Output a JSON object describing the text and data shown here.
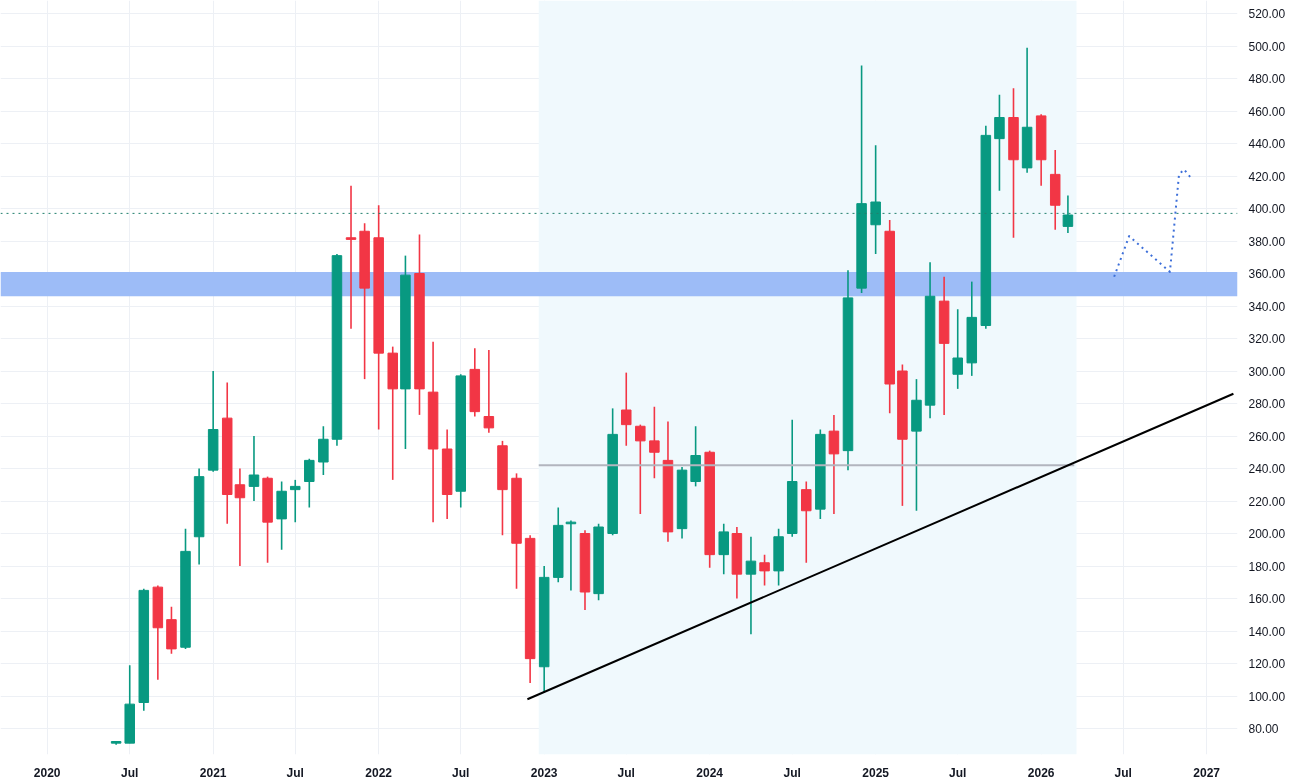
{
  "chart_data": {
    "type": "candlestick",
    "x": [
      "2020-06",
      "2020-07",
      "2020-08",
      "2020-09",
      "2020-10",
      "2020-11",
      "2020-12",
      "2021-01",
      "2021-02",
      "2021-03",
      "2021-04",
      "2021-05",
      "2021-06",
      "2021-07",
      "2021-08",
      "2021-09",
      "2021-10",
      "2021-11",
      "2021-12",
      "2022-01",
      "2022-02",
      "2022-03",
      "2022-04",
      "2022-05",
      "2022-06",
      "2022-07",
      "2022-08",
      "2022-09",
      "2022-10",
      "2022-11",
      "2022-12",
      "2023-01",
      "2023-02",
      "2023-03",
      "2023-04",
      "2023-05",
      "2023-06",
      "2023-07",
      "2023-08",
      "2023-09",
      "2023-10",
      "2023-11",
      "2023-12",
      "2024-01",
      "2024-02",
      "2024-03",
      "2024-04",
      "2024-05",
      "2024-06",
      "2024-07",
      "2024-08",
      "2024-09",
      "2024-10",
      "2024-11",
      "2024-12",
      "2025-01",
      "2025-02",
      "2025-03",
      "2025-04",
      "2025-05",
      "2025-06",
      "2025-07",
      "2025-08",
      "2025-09",
      "2025-10",
      "2025-11",
      "2025-12",
      "2026-01",
      "2026-02",
      "2026-03"
    ],
    "ohlc": [
      [
        71,
        72,
        70,
        72
      ],
      [
        71,
        119,
        71,
        95
      ],
      [
        96,
        166,
        91,
        165
      ],
      [
        167,
        168,
        110,
        142
      ],
      [
        147,
        155,
        126,
        129
      ],
      [
        130,
        203,
        129,
        189
      ],
      [
        198,
        240,
        181,
        235
      ],
      [
        239,
        300,
        238,
        264
      ],
      [
        271,
        293,
        206,
        224
      ],
      [
        230,
        240,
        180,
        222
      ],
      [
        229,
        260,
        220,
        236
      ],
      [
        234,
        235,
        182,
        207
      ],
      [
        209,
        232,
        190,
        226
      ],
      [
        227,
        233,
        207,
        229
      ],
      [
        232,
        246,
        216,
        245
      ],
      [
        244,
        266,
        236,
        258
      ],
      [
        258,
        372,
        254,
        371
      ],
      [
        382,
        414,
        326,
        381
      ],
      [
        386,
        391,
        295,
        351
      ],
      [
        382,
        402,
        264,
        311
      ],
      [
        311,
        315,
        233,
        289
      ],
      [
        289,
        371,
        252,
        359
      ],
      [
        360,
        384,
        273,
        289
      ],
      [
        287,
        318,
        207,
        252
      ],
      [
        252,
        264,
        209,
        224
      ],
      [
        226,
        298,
        216,
        297
      ],
      [
        301,
        314,
        272,
        275
      ],
      [
        272,
        313,
        262,
        265
      ],
      [
        254,
        257,
        199,
        227
      ],
      [
        234,
        237,
        166,
        194
      ],
      [
        197,
        199,
        108,
        123
      ],
      [
        118,
        180,
        102,
        173
      ],
      [
        173,
        216,
        170,
        205
      ],
      [
        206,
        208,
        165,
        207
      ],
      [
        200,
        202,
        153,
        164
      ],
      [
        163,
        206,
        159,
        204
      ],
      [
        200,
        277,
        199,
        261
      ],
      [
        276,
        299,
        254,
        267
      ],
      [
        266,
        267,
        212,
        257
      ],
      [
        257,
        278,
        234,
        250
      ],
      [
        245,
        269,
        195,
        201
      ],
      [
        203,
        241,
        197,
        239
      ],
      [
        232,
        266,
        229,
        248
      ],
      [
        250,
        251,
        179,
        187
      ],
      [
        187,
        206,
        175,
        201
      ],
      [
        200,
        204,
        160,
        175
      ],
      [
        175,
        198,
        138,
        183
      ],
      [
        182,
        187,
        168,
        177
      ],
      [
        177,
        203,
        168,
        198
      ],
      [
        200,
        270,
        198,
        232
      ],
      [
        227,
        232,
        182,
        214
      ],
      [
        215,
        264,
        209,
        261
      ],
      [
        263,
        273,
        212,
        249
      ],
      [
        251,
        362,
        239,
        345
      ],
      [
        351,
        488,
        348,
        403
      ],
      [
        390,
        439,
        372,
        404
      ],
      [
        386,
        393,
        274,
        292
      ],
      [
        300,
        304,
        217,
        258
      ],
      [
        263,
        295,
        214,
        282
      ],
      [
        279,
        367,
        271,
        346
      ],
      [
        343,
        358,
        273,
        317
      ],
      [
        298,
        338,
        289,
        308
      ],
      [
        305,
        355,
        297,
        333
      ],
      [
        328,
        451,
        326,
        445
      ],
      [
        443,
        470,
        411,
        456
      ],
      [
        456,
        474,
        382,
        430
      ],
      [
        425,
        499,
        422,
        450
      ],
      [
        457,
        458,
        414,
        430
      ],
      [
        421,
        436,
        387,
        402
      ],
      [
        389,
        408,
        385,
        396
      ]
    ],
    "series": [
      {
        "type": "line",
        "color": "#b2b5be",
        "x": [
          "2022-12-20",
          "2026-03-15"
        ],
        "values": [
          242,
          242
        ]
      },
      {
        "type": "line",
        "color": "#000000",
        "x": [
          "2022-11-25",
          "2027-03-01"
        ],
        "values": [
          98,
          286
        ]
      },
      {
        "type": "line",
        "color": "#3d6fd9",
        "line_style": "dotted",
        "x": [
          "2026-06-11",
          "2026-07-14",
          "2026-10-12",
          "2026-11-01",
          "2026-11-12",
          "2026-11-30"
        ],
        "values": [
          358,
          383,
          361,
          421,
          424,
          418
        ]
      }
    ],
    "ref_lines": [
      {
        "axis": "y",
        "value": 397,
        "color": "#22806e",
        "line_style": "dotted"
      }
    ],
    "bands": [
      {
        "axis": "x",
        "from": "2022-12-20",
        "to": "2026-03-20",
        "color": "#f0f9fd"
      },
      {
        "axis": "y",
        "from": 346,
        "to": 361,
        "color": "#9dbcf7"
      }
    ],
    "xlim": [
      "2019-09-20",
      "2027-03-10"
    ],
    "ylim": [
      64,
      528
    ],
    "xticks": [
      {
        "value": "2020-01",
        "label": "2020"
      },
      {
        "value": "2020-07",
        "label": "Jul"
      },
      {
        "value": "2021-01",
        "label": "2021"
      },
      {
        "value": "2021-07",
        "label": "Jul"
      },
      {
        "value": "2022-01",
        "label": "2022"
      },
      {
        "value": "2022-07",
        "label": "Jul"
      },
      {
        "value": "2023-01",
        "label": "2023"
      },
      {
        "value": "2023-07",
        "label": "Jul"
      },
      {
        "value": "2024-01",
        "label": "2024"
      },
      {
        "value": "2024-07",
        "label": "Jul"
      },
      {
        "value": "2025-01",
        "label": "2025"
      },
      {
        "value": "2025-07",
        "label": "Jul"
      },
      {
        "value": "2026-01",
        "label": "2026"
      },
      {
        "value": "2026-07",
        "label": "Jul"
      },
      {
        "value": "2027-01",
        "label": "2027"
      }
    ],
    "yticks": [
      {
        "value": 80,
        "label": "80.00"
      },
      {
        "value": 100,
        "label": "100.00"
      },
      {
        "value": 120,
        "label": "120.00"
      },
      {
        "value": 140,
        "label": "140.00"
      },
      {
        "value": 160,
        "label": "160.00"
      },
      {
        "value": 180,
        "label": "180.00"
      },
      {
        "value": 200,
        "label": "200.00"
      },
      {
        "value": 220,
        "label": "220.00"
      },
      {
        "value": 240,
        "label": "240.00"
      },
      {
        "value": 260,
        "label": "260.00"
      },
      {
        "value": 280,
        "label": "280.00"
      },
      {
        "value": 300,
        "label": "300.00"
      },
      {
        "value": 320,
        "label": "320.00"
      },
      {
        "value": 340,
        "label": "340.00"
      },
      {
        "value": 360,
        "label": "360.00"
      },
      {
        "value": 380,
        "label": "380.00"
      },
      {
        "value": 400,
        "label": "400.00"
      },
      {
        "value": 420,
        "label": "420.00"
      },
      {
        "value": 440,
        "label": "440.00"
      },
      {
        "value": 460,
        "label": "460.00"
      },
      {
        "value": 480,
        "label": "480.00"
      },
      {
        "value": 500,
        "label": "500.00"
      },
      {
        "value": 520,
        "label": "520.00"
      }
    ],
    "grid": true
  }
}
